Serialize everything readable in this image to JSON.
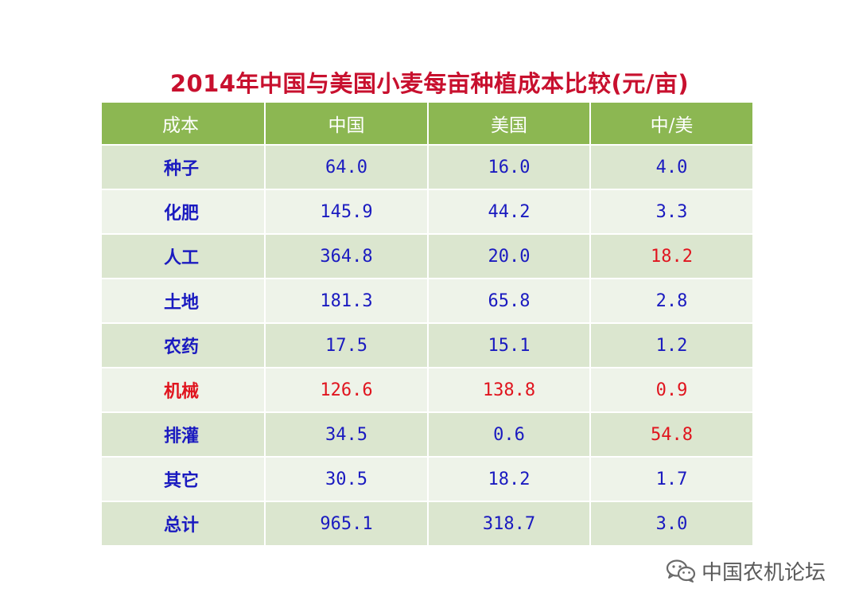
{
  "chart_data": {
    "type": "table",
    "title": "2014年中国与美国小麦每亩种植成本比较(元/亩)",
    "columns": [
      "成本",
      "中国",
      "美国",
      "中/美"
    ],
    "rows": [
      {
        "label": "种子",
        "china": "64.0",
        "usa": "16.0",
        "ratio": "4.0",
        "highlight": []
      },
      {
        "label": "化肥",
        "china": "145.9",
        "usa": "44.2",
        "ratio": "3.3",
        "highlight": []
      },
      {
        "label": "人工",
        "china": "364.8",
        "usa": "20.0",
        "ratio": "18.2",
        "highlight": [
          "ratio"
        ]
      },
      {
        "label": "土地",
        "china": "181.3",
        "usa": "65.8",
        "ratio": "2.8",
        "highlight": []
      },
      {
        "label": "农药",
        "china": "17.5",
        "usa": "15.1",
        "ratio": "1.2",
        "highlight": []
      },
      {
        "label": "机械",
        "china": "126.6",
        "usa": "138.8",
        "ratio": "0.9",
        "highlight": [
          "label",
          "china",
          "usa",
          "ratio"
        ]
      },
      {
        "label": "排灌",
        "china": "34.5",
        "usa": "0.6",
        "ratio": "54.8",
        "highlight": [
          "ratio"
        ]
      },
      {
        "label": "其它",
        "china": "30.5",
        "usa": "18.2",
        "ratio": "1.7",
        "highlight": []
      },
      {
        "label": "总计",
        "china": "965.1",
        "usa": "318.7",
        "ratio": "3.0",
        "highlight": []
      }
    ]
  },
  "colors": {
    "title": "#c8102e",
    "header_bg": "#8cb752",
    "row_dark": "#dbe6cf",
    "row_light": "#eef3e9",
    "value_text": "#1a1ac0",
    "highlight_text": "#e0141e"
  },
  "watermark": {
    "icon": "wechat-icon",
    "text": "中国农机论坛"
  }
}
